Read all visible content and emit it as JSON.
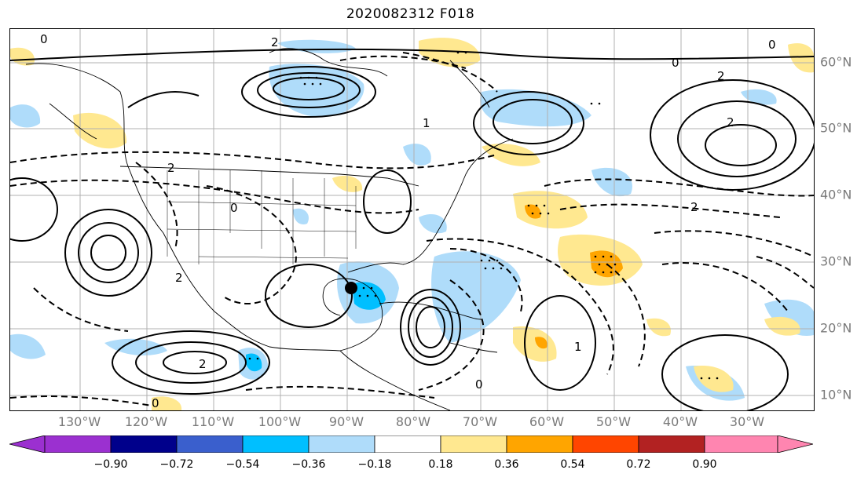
{
  "title": "2020082312 F018",
  "lon_labels": [
    "130°W",
    "120°W",
    "110°W",
    "100°W",
    "90°W",
    "80°W",
    "70°W",
    "60°W",
    "50°W",
    "40°W",
    "30°W"
  ],
  "lat_labels": [
    "60°N",
    "50°N",
    "40°N",
    "30°N",
    "20°N",
    "10°N"
  ],
  "colorbar": {
    "ticks": [
      "−0.90",
      "−0.72",
      "−0.54",
      "−0.36",
      "−0.18",
      "0.18",
      "0.36",
      "0.54",
      "0.72",
      "0.90"
    ],
    "colors": [
      "#9b30d0",
      "#00008b",
      "#3a5fcd",
      "#00bfff",
      "#afdcfa",
      "#ffffff",
      "#ffe890",
      "#ffa500",
      "#ff4500",
      "#b22222",
      "#ff85b0"
    ]
  },
  "contour_labels": {
    "a": "0",
    "b": "2",
    "c": "1",
    "d": "0",
    "e": "2",
    "f": "0",
    "g": "2",
    "h": "2",
    "i": "2",
    "j": "0",
    "k": "2",
    "l": "0",
    "m": "1",
    "n": "2",
    "o": "0"
  },
  "marker": "storm-center"
}
